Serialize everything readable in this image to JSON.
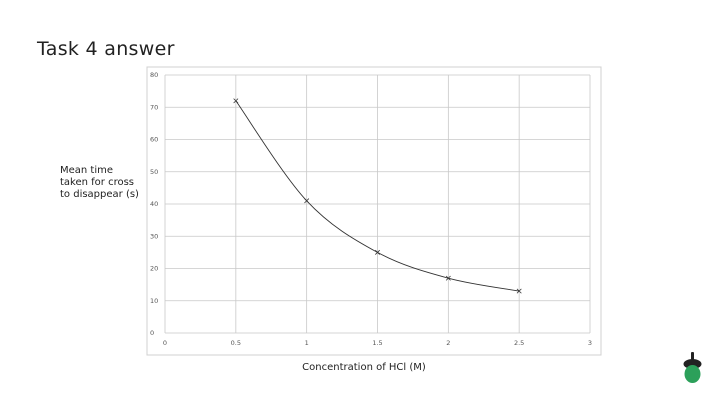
{
  "chart_data": {
    "type": "line",
    "title": "Task 4 answer",
    "x_label": "Concentration of HCl (M)",
    "y_label": "Mean time taken for cross to disappear (s)",
    "x": [
      0.5,
      1,
      1.5,
      2,
      2.5
    ],
    "series": [
      {
        "color": "#333333",
        "values": [
          72,
          41,
          25,
          17,
          13
        ]
      }
    ],
    "xlim": [
      0,
      3
    ],
    "xticks": [
      0,
      0.5,
      1,
      1.5,
      2,
      2.5,
      3
    ],
    "ylim": [
      0,
      80
    ],
    "yticks": [
      0,
      10,
      20,
      30,
      40,
      50,
      60,
      70,
      80
    ],
    "grid": true
  }
}
